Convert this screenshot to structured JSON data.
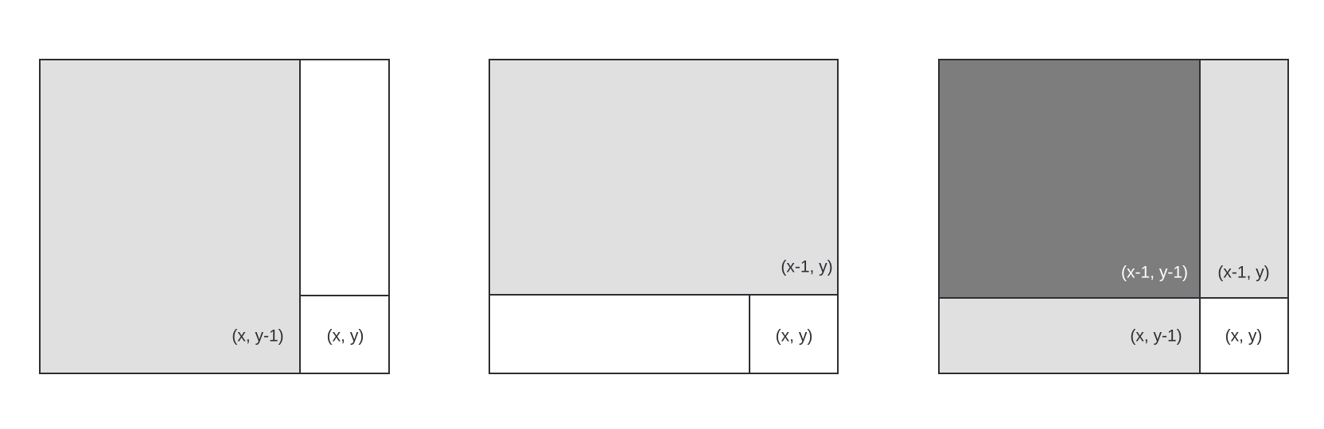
{
  "colors": {
    "background": "#ffffff",
    "light_fill": "#e0e0e1",
    "dark_fill": "#7d7d7d",
    "stroke": "#2b2f33",
    "text_dark": "#2b2f33",
    "text_light": "#ffffff"
  },
  "panels": [
    {
      "name": "panel-left",
      "cells": [
        {
          "name": "region-x-ym1",
          "fill": "light",
          "label": "(x, y-1)",
          "label_color": "dark"
        },
        {
          "name": "region-strip-above",
          "fill": "none",
          "label": ""
        },
        {
          "name": "cell-x-y",
          "fill": "none",
          "label": "(x, y)",
          "label_color": "dark"
        }
      ]
    },
    {
      "name": "panel-middle",
      "cells": [
        {
          "name": "region-xm1-y",
          "fill": "light",
          "label": "(x-1, y)",
          "label_color": "dark"
        },
        {
          "name": "region-strip-left",
          "fill": "none",
          "label": ""
        },
        {
          "name": "cell-x-y",
          "fill": "none",
          "label": "(x, y)",
          "label_color": "dark"
        }
      ]
    },
    {
      "name": "panel-right",
      "cells": [
        {
          "name": "region-xm1-ym1",
          "fill": "dark",
          "label": "(x-1, y-1)",
          "label_color": "light"
        },
        {
          "name": "region-xm1-y",
          "fill": "light",
          "label": "(x-1, y)",
          "label_color": "dark"
        },
        {
          "name": "region-x-ym1",
          "fill": "light",
          "label": "(x, y-1)",
          "label_color": "dark"
        },
        {
          "name": "cell-x-y",
          "fill": "none",
          "label": "(x, y)",
          "label_color": "dark"
        }
      ]
    }
  ]
}
